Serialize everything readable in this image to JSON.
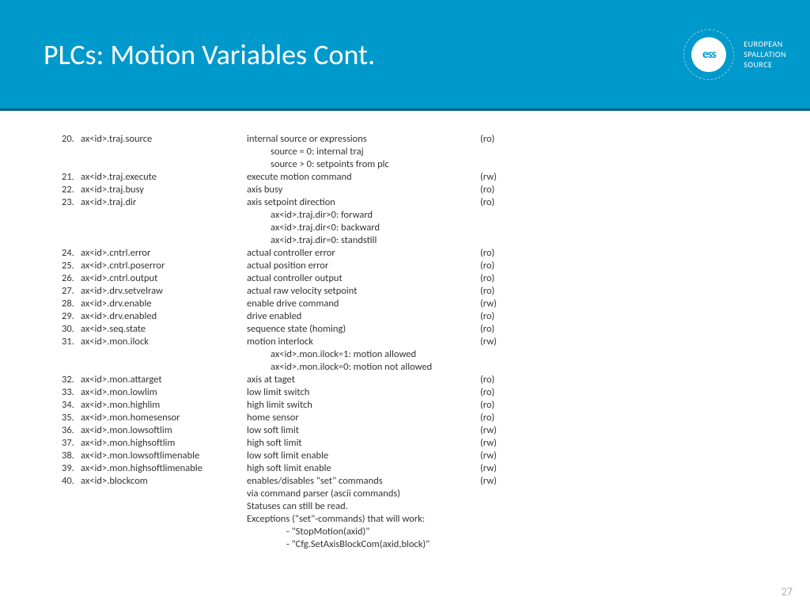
{
  "header": {
    "title": "PLCs: Motion Variables Cont.",
    "logo_abbrev": "ess",
    "logo_line1": "EUROPEAN",
    "logo_line2": "SPALLATION",
    "logo_line3": "SOURCE",
    "bg_color": "#0099cc"
  },
  "page_number": "27",
  "rows": [
    {
      "n": "20.",
      "v": "ax<id>.traj.source",
      "d": "internal source or expressions",
      "m": "(ro)",
      "subs": [
        {
          "t": "source = 0: internal traj",
          "i": 1
        },
        {
          "t": "source > 0: setpoints from plc",
          "i": 1
        }
      ]
    },
    {
      "n": "21.",
      "v": "ax<id>.traj.execute",
      "d": "execute motion command",
      "m": "(rw)"
    },
    {
      "n": "22.",
      "v": "ax<id>.traj.busy",
      "d": "axis busy",
      "m": "(ro)"
    },
    {
      "n": "23.",
      "v": "ax<id>.traj.dir",
      "d": "axis setpoint direction",
      "m": "(ro)",
      "subs": [
        {
          "t": "ax<id>.traj.dir>0: forward",
          "i": 1
        },
        {
          "t": "ax<id>.traj.dir<0: backward",
          "i": 1
        },
        {
          "t": "ax<id>.traj.dir=0: standstill",
          "i": 1
        }
      ]
    },
    {
      "n": "24.",
      "v": "ax<id>.cntrl.error",
      "d": "actual controller error",
      "m": "(ro)"
    },
    {
      "n": "25.",
      "v": "ax<id>.cntrl.poserror",
      "d": "actual position error",
      "m": "(ro)"
    },
    {
      "n": "26.",
      "v": "ax<id>.cntrl.output",
      "d": "actual controller output",
      "m": "(ro)"
    },
    {
      "n": "27.",
      "v": "ax<id>.drv.setvelraw",
      "d": "actual raw velocity setpoint",
      "m": "(ro)"
    },
    {
      "n": "28.",
      "v": "ax<id>.drv.enable",
      "d": "enable drive command",
      "m": "(rw)"
    },
    {
      "n": "29.",
      "v": "ax<id>.drv.enabled",
      "d": "drive enabled",
      "m": "(ro)"
    },
    {
      "n": "30.",
      "v": "ax<id>.seq.state",
      "d": "sequence state (homing)",
      "m": "(ro)"
    },
    {
      "n": "31.",
      "v": "ax<id>.mon.ilock",
      "d": "motion interlock",
      "m": "(rw)",
      "subs": [
        {
          "t": "ax<id>.mon.ilock=1: motion allowed",
          "i": 1
        },
        {
          "t": "ax<id>.mon.ilock=0: motion not allowed",
          "i": 1
        }
      ]
    },
    {
      "n": "32.",
      "v": "ax<id>.mon.attarget",
      "d": "axis at taget",
      "m": "(ro)"
    },
    {
      "n": "33.",
      "v": "ax<id>.mon.lowlim",
      "d": "low limit switch",
      "m": "(ro)"
    },
    {
      "n": "34.",
      "v": "ax<id>.mon.highlim",
      "d": "high limit switch",
      "m": "(ro)"
    },
    {
      "n": "35.",
      "v": "ax<id>.mon.homesensor",
      "d": "home sensor",
      "m": "(ro)"
    },
    {
      "n": "36.",
      "v": "ax<id>.mon.lowsoftlim",
      "d": "low soft limit",
      "m": "(rw)"
    },
    {
      "n": "37.",
      "v": "ax<id>.mon.highsoftlim",
      "d": "high soft limit",
      "m": "(rw)"
    },
    {
      "n": "38.",
      "v": "ax<id>.mon.lowsoftlimenable",
      "d": "low soft limit enable",
      "m": "(rw)"
    },
    {
      "n": "39.",
      "v": "ax<id>.mon.highsoftlimenable",
      "d": "high soft limit enable",
      "m": "(rw)"
    },
    {
      "n": "40.",
      "v": "ax<id>.blockcom",
      "d": "enables/disables \"set\" commands",
      "m": "(rw)",
      "subs": [
        {
          "t": "via command parser (ascii commands)",
          "i": 0
        },
        {
          "t": "Statuses can still be read.",
          "i": 0
        },
        {
          "t": "Exceptions (\"set\"-commands) that will work:",
          "i": 0
        },
        {
          "t": "- \"StopMotion(axid)\"",
          "i": 2
        },
        {
          "t": "- \"Cfg.SetAxisBlockCom(axid,block)\"",
          "i": 2
        }
      ]
    }
  ]
}
